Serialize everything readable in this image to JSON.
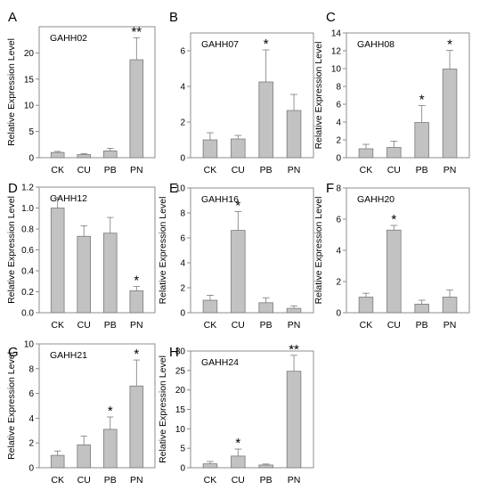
{
  "figure": {
    "ylabel": "Relative Expression Level"
  },
  "chart_data": [
    {
      "type": "bar",
      "panel": "A",
      "title": "GAHH02",
      "categories": [
        "CK",
        "CU",
        "PB",
        "PN"
      ],
      "values": [
        1.0,
        0.6,
        1.3,
        18.7
      ],
      "errors": [
        0.2,
        0.2,
        0.5,
        4.2
      ],
      "significance": [
        "",
        "",
        "",
        "**"
      ],
      "ylim": [
        0,
        25
      ],
      "yticks": [
        0,
        5,
        10,
        15,
        20
      ],
      "ylabel": "Relative Expression Level"
    },
    {
      "type": "bar",
      "panel": "B",
      "title": "GAHH07",
      "categories": [
        "CK",
        "CU",
        "PB",
        "PN"
      ],
      "values": [
        1.0,
        1.05,
        4.25,
        2.65
      ],
      "errors": [
        0.4,
        0.2,
        1.8,
        0.9
      ],
      "significance": [
        "",
        "",
        "*",
        ""
      ],
      "ylim": [
        0,
        7
      ],
      "yticks": [
        0,
        2,
        4,
        6
      ],
      "ylabel": ""
    },
    {
      "type": "bar",
      "panel": "C",
      "title": "GAHH08",
      "categories": [
        "CK",
        "CU",
        "PB",
        "PN"
      ],
      "values": [
        1.0,
        1.15,
        3.95,
        9.95
      ],
      "errors": [
        0.5,
        0.7,
        1.9,
        2.1
      ],
      "significance": [
        "",
        "",
        "*",
        "*"
      ],
      "ylim": [
        0,
        14
      ],
      "yticks": [
        0,
        2,
        4,
        6,
        8,
        10,
        12,
        14
      ],
      "ylabel": "Relative Expression Level"
    },
    {
      "type": "bar",
      "panel": "D",
      "title": "GAHH12",
      "categories": [
        "CK",
        "CU",
        "PB",
        "PN"
      ],
      "values": [
        1.0,
        0.73,
        0.76,
        0.21
      ],
      "errors": [
        0.1,
        0.1,
        0.15,
        0.04
      ],
      "significance": [
        "",
        "",
        "",
        "*"
      ],
      "ylim": [
        0,
        1.2
      ],
      "yticks": [
        "0.0",
        "0.2",
        "0.4",
        "0.6",
        "0.8",
        "1.0",
        "1.2"
      ],
      "ylabel": "Relative Expression Level"
    },
    {
      "type": "bar",
      "panel": "E",
      "title": "GAHH16",
      "categories": [
        "CK",
        "CU",
        "PB",
        "PN"
      ],
      "values": [
        1.0,
        6.6,
        0.8,
        0.35
      ],
      "errors": [
        0.4,
        1.5,
        0.4,
        0.2
      ],
      "significance": [
        "",
        "*",
        "",
        ""
      ],
      "ylim": [
        0,
        10
      ],
      "yticks": [
        0,
        2,
        4,
        6,
        8,
        10
      ],
      "ylabel": "Relative Expression Level"
    },
    {
      "type": "bar",
      "panel": "F",
      "title": "GAHH20",
      "categories": [
        "CK",
        "CU",
        "PB",
        "PN"
      ],
      "values": [
        1.0,
        5.3,
        0.55,
        1.0
      ],
      "errors": [
        0.25,
        0.3,
        0.25,
        0.45
      ],
      "significance": [
        "",
        "*",
        "",
        ""
      ],
      "ylim": [
        0,
        8
      ],
      "yticks": [
        0,
        2,
        4,
        6,
        8
      ],
      "ylabel": "Relative Expression Level"
    },
    {
      "type": "bar",
      "panel": "G",
      "title": "GAHH21",
      "categories": [
        "CK",
        "CU",
        "PB",
        "PN"
      ],
      "values": [
        1.0,
        1.85,
        3.1,
        6.6
      ],
      "errors": [
        0.35,
        0.7,
        1.0,
        2.1
      ],
      "significance": [
        "",
        "",
        "*",
        "*"
      ],
      "ylim": [
        0,
        10
      ],
      "yticks": [
        0,
        2,
        4,
        6,
        8,
        10
      ],
      "ylabel": "Relative Expression Level"
    },
    {
      "type": "bar",
      "panel": "H",
      "title": "GAHH24",
      "categories": [
        "CK",
        "CU",
        "PB",
        "PN"
      ],
      "values": [
        1.0,
        3.0,
        0.7,
        24.8
      ],
      "errors": [
        0.6,
        1.8,
        0.25,
        4.1
      ],
      "significance": [
        "",
        "*",
        "",
        "**"
      ],
      "ylim": [
        0,
        30
      ],
      "yticks": [
        0,
        5,
        10,
        15,
        20,
        25,
        30
      ],
      "ylabel": "Relative Expression Level"
    }
  ]
}
